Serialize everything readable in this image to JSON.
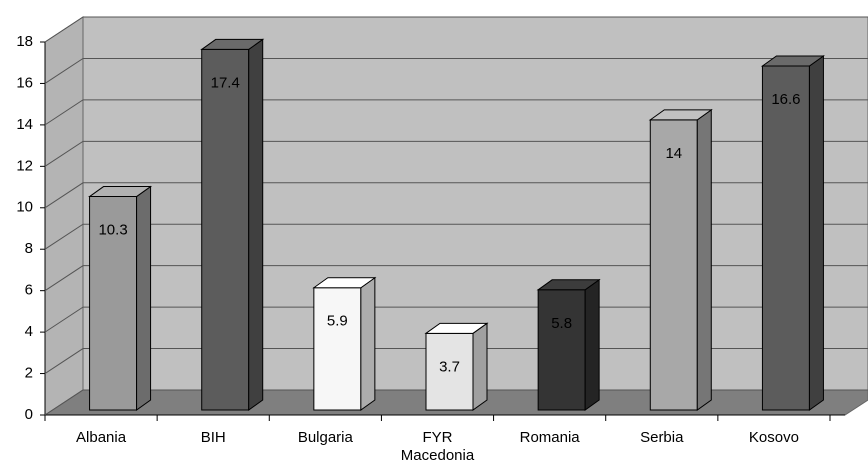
{
  "chart_data": {
    "type": "bar3d",
    "categories": [
      "Albania",
      "BIH",
      "Bulgaria",
      "FYR Macedonia",
      "Romania",
      "Serbia",
      "Kosovo"
    ],
    "values": [
      10.3,
      17.4,
      5.9,
      3.7,
      5.8,
      14,
      16.6
    ],
    "colors": [
      "#9a9a9a",
      "#5c5c5c",
      "#f7f7f7",
      "#e4e4e4",
      "#343434",
      "#a8a8a8",
      "#5c5c5c"
    ],
    "ylim": [
      0,
      18
    ],
    "yticks": [
      0,
      2,
      4,
      6,
      8,
      10,
      12,
      14,
      16,
      18
    ],
    "grid": true
  }
}
